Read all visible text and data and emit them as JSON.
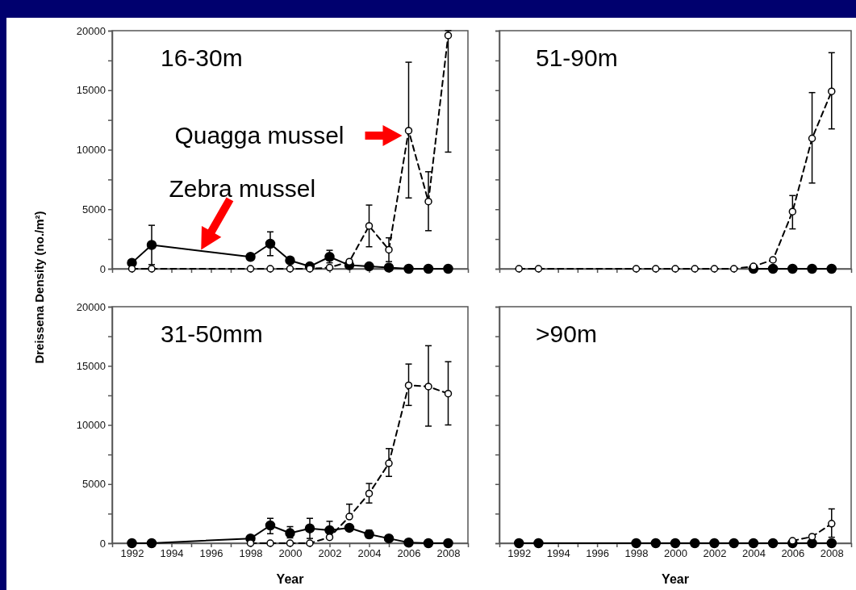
{
  "chart_data": [
    {
      "type": "line",
      "title": "16-30m",
      "ylabel": "Dreissena Density (no./m²)",
      "x": [
        1992,
        1993,
        1998,
        1999,
        2000,
        2001,
        2002,
        2003,
        2004,
        2005,
        2006,
        2007,
        2008
      ],
      "xlim": [
        1991,
        2009
      ],
      "ylim": [
        0,
        20000
      ],
      "xticks": [
        1992,
        {
          "value": 1993,
          "label": null
        },
        1994,
        {
          "value": 1995,
          "label": null
        },
        1996,
        {
          "value": 1997,
          "label": null
        },
        1998,
        {
          "value": 1999,
          "label": null
        },
        2000,
        {
          "value": 2001,
          "label": null
        },
        2002,
        {
          "value": 2003,
          "label": null
        },
        2004,
        {
          "value": 2005,
          "label": null
        },
        2006,
        {
          "value": 2007,
          "label": null
        },
        2008
      ],
      "yticks": [
        0,
        {
          "value": 2500,
          "label": null
        },
        5000,
        {
          "value": 7500,
          "label": null
        },
        10000,
        {
          "value": 12500,
          "label": null
        },
        15000,
        {
          "value": 17500,
          "label": null
        },
        20000
      ],
      "tick_labels": "y",
      "marker": "circle",
      "annotations": [
        {
          "text": "Quagga mussel",
          "x": 2006,
          "y": 11600
        },
        {
          "text": "Zebra mussel",
          "x": 1995.5,
          "y": 1600
        }
      ],
      "series": [
        {
          "color": "#000000",
          "line_style": "solid",
          "values": [
            500,
            2000,
            1000,
            2100,
            700,
            200,
            1000,
            300,
            200,
            100,
            0,
            0,
            0
          ],
          "errors": [
            null,
            [
              350,
              3650
            ],
            null,
            [
              1100,
              3100
            ],
            null,
            null,
            [
              500,
              1550
            ],
            null,
            null,
            null,
            null,
            null,
            null
          ]
        },
        {
          "color": "#000000",
          "line_style": "dashed",
          "values": [
            0,
            0,
            0,
            0,
            0,
            0,
            100,
            600,
            3600,
            1600,
            11600,
            5650,
            19600
          ],
          "errors": [
            null,
            null,
            null,
            null,
            null,
            null,
            null,
            null,
            [
              1850,
              5350
            ],
            [
              600,
              2600
            ],
            [
              5950,
              17350
            ],
            [
              3200,
              8150
            ],
            [
              9800,
              20000
            ]
          ]
        }
      ]
    },
    {
      "type": "line",
      "title": "51-90m",
      "x": [
        1992,
        1993,
        1998,
        1999,
        2000,
        2001,
        2002,
        2003,
        2004,
        2005,
        2006,
        2007,
        2008
      ],
      "xlim": [
        1991,
        2009
      ],
      "ylim": [
        0,
        20000
      ],
      "xticks": [
        1992,
        {
          "value": 1993,
          "label": null
        },
        1994,
        {
          "value": 1995,
          "label": null
        },
        1996,
        {
          "value": 1997,
          "label": null
        },
        1998,
        {
          "value": 1999,
          "label": null
        },
        2000,
        {
          "value": 2001,
          "label": null
        },
        2002,
        {
          "value": 2003,
          "label": null
        },
        2004,
        {
          "value": 2005,
          "label": null
        },
        2006,
        {
          "value": 2007,
          "label": null
        },
        2008
      ],
      "yticks": [
        0,
        {
          "value": 2500,
          "label": null
        },
        5000,
        {
          "value": 7500,
          "label": null
        },
        10000,
        {
          "value": 12500,
          "label": null
        },
        15000,
        {
          "value": 17500,
          "label": null
        },
        20000
      ],
      "tick_labels": false,
      "marker": "circle",
      "series": [
        {
          "color": "#000000",
          "line_style": "solid",
          "values": [
            null,
            null,
            null,
            null,
            null,
            null,
            null,
            null,
            0,
            0,
            0,
            0,
            0
          ]
        },
        {
          "color": "#000000",
          "line_style": "dashed",
          "values": [
            0,
            0,
            0,
            0,
            0,
            0,
            0,
            0,
            200,
            750,
            4800,
            10950,
            14900
          ],
          "errors": [
            null,
            null,
            null,
            null,
            null,
            null,
            null,
            null,
            null,
            null,
            [
              3350,
              6150
            ],
            [
              7200,
              14800
            ],
            [
              11750,
              18150
            ]
          ]
        }
      ]
    },
    {
      "type": "line",
      "title": "31-50mm",
      "xlabel": "Year",
      "x": [
        1992,
        1993,
        1998,
        1999,
        2000,
        2001,
        2002,
        2003,
        2004,
        2005,
        2006,
        2007,
        2008
      ],
      "xlim": [
        1991,
        2009
      ],
      "ylim": [
        0,
        20000
      ],
      "xticks": [
        1992,
        {
          "value": 1993,
          "label": null
        },
        1994,
        {
          "value": 1995,
          "label": null
        },
        1996,
        {
          "value": 1997,
          "label": null
        },
        1998,
        {
          "value": 1999,
          "label": null
        },
        2000,
        {
          "value": 2001,
          "label": null
        },
        2002,
        {
          "value": 2003,
          "label": null
        },
        2004,
        {
          "value": 2005,
          "label": null
        },
        2006,
        {
          "value": 2007,
          "label": null
        },
        2008
      ],
      "yticks": [
        0,
        {
          "value": 2500,
          "label": null
        },
        5000,
        {
          "value": 7500,
          "label": null
        },
        10000,
        {
          "value": 12500,
          "label": null
        },
        15000,
        {
          "value": 17500,
          "label": null
        },
        20000
      ],
      "marker": "circle",
      "series": [
        {
          "color": "#000000",
          "line_style": "solid",
          "values": [
            0,
            0,
            400,
            1500,
            850,
            1250,
            1100,
            1300,
            750,
            400,
            50,
            0,
            0
          ],
          "errors": [
            null,
            null,
            null,
            [
              800,
              2100
            ],
            [
              450,
              1400
            ],
            [
              400,
              2100
            ],
            [
              500,
              1850
            ],
            null,
            [
              450,
              1100
            ],
            null,
            null,
            null,
            null
          ]
        },
        {
          "color": "#000000",
          "line_style": "dashed",
          "values": [
            null,
            null,
            0,
            0,
            0,
            0,
            500,
            2250,
            4200,
            6750,
            13350,
            13250,
            12650
          ],
          "errors": [
            null,
            null,
            null,
            null,
            null,
            null,
            null,
            [
              2250,
              3300
            ],
            [
              3400,
              5050
            ],
            [
              5650,
              8000
            ],
            [
              11650,
              15150
            ],
            [
              9900,
              16700
            ],
            [
              10000,
              15350
            ]
          ]
        }
      ]
    },
    {
      "type": "line",
      "title": ">90m",
      "xlabel": "Year",
      "x": [
        1992,
        1993,
        1998,
        1999,
        2000,
        2001,
        2002,
        2003,
        2004,
        2005,
        2006,
        2007,
        2008
      ],
      "xlim": [
        1991,
        2009
      ],
      "ylim": [
        0,
        20000
      ],
      "xticks": [
        1992,
        {
          "value": 1993,
          "label": null
        },
        1994,
        {
          "value": 1995,
          "label": null
        },
        1996,
        {
          "value": 1997,
          "label": null
        },
        1998,
        {
          "value": 1999,
          "label": null
        },
        2000,
        {
          "value": 2001,
          "label": null
        },
        2002,
        {
          "value": 2003,
          "label": null
        },
        2004,
        {
          "value": 2005,
          "label": null
        },
        2006,
        {
          "value": 2007,
          "label": null
        },
        2008
      ],
      "yticks": [
        0,
        {
          "value": 2500,
          "label": null
        },
        5000,
        {
          "value": 7500,
          "label": null
        },
        10000,
        {
          "value": 12500,
          "label": null
        },
        15000,
        {
          "value": 17500,
          "label": null
        },
        20000
      ],
      "tick_labels": "x",
      "marker": "circle",
      "series": [
        {
          "color": "#000000",
          "line_style": "solid",
          "values": [
            0,
            0,
            0,
            0,
            0,
            0,
            0,
            0,
            0,
            0,
            0,
            0,
            0
          ]
        },
        {
          "color": "#000000",
          "line_style": "dashed",
          "values": [
            null,
            null,
            null,
            null,
            null,
            null,
            null,
            null,
            null,
            null,
            200,
            550,
            1650
          ],
          "errors": [
            null,
            null,
            null,
            null,
            null,
            null,
            null,
            null,
            null,
            null,
            null,
            null,
            [
              500,
              2900
            ]
          ]
        }
      ]
    }
  ]
}
